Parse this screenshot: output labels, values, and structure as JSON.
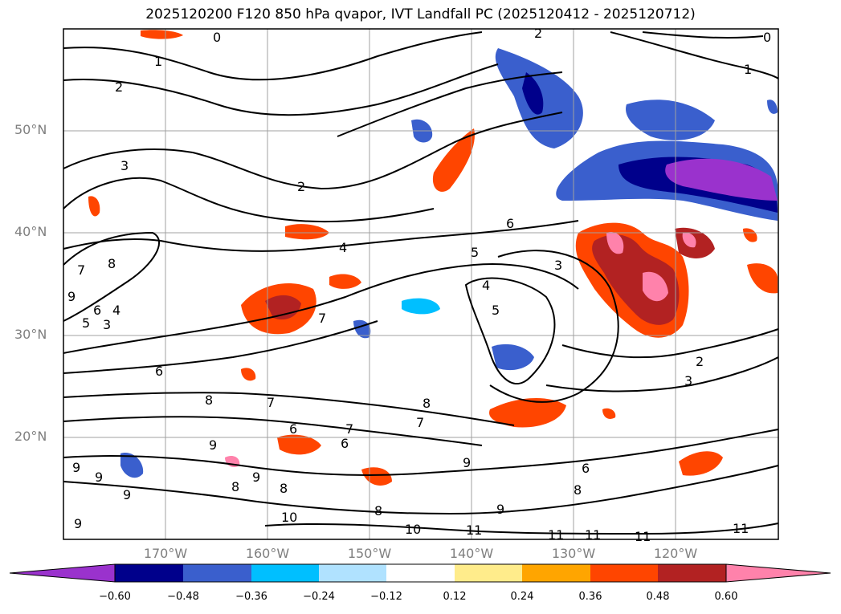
{
  "title": "2025120200 F120 850 hPa qvapor, IVT Landfall PC (2025120412 - 2025120712)",
  "map": {
    "lat_ticks": [
      "50°N",
      "40°N",
      "30°N",
      "20°N"
    ],
    "lon_ticks": [
      "170°W",
      "160°W",
      "150°W",
      "140°W",
      "130°W",
      "120°W"
    ],
    "gridlines": "on",
    "contour_labels": [
      "0",
      "1",
      "2",
      "3",
      "4",
      "5",
      "6",
      "7",
      "8",
      "9",
      "10",
      "11"
    ],
    "colors": {
      "background": "#ffffff",
      "grid": "#a0a0a0",
      "coast": "#000000"
    }
  },
  "colorbar": {
    "ticks": [
      "−0.60",
      "−0.48",
      "−0.36",
      "−0.24",
      "−0.12",
      "0.12",
      "0.24",
      "0.36",
      "0.48",
      "0.60"
    ],
    "colors": [
      "#9a32cd",
      "#00008b",
      "#3a5fcd",
      "#00bfff",
      "#b0e2ff",
      "#ffffff",
      "#ffec8b",
      "#ffa500",
      "#ff4500",
      "#b22222",
      "#ff82ab"
    ],
    "extend": "both"
  }
}
